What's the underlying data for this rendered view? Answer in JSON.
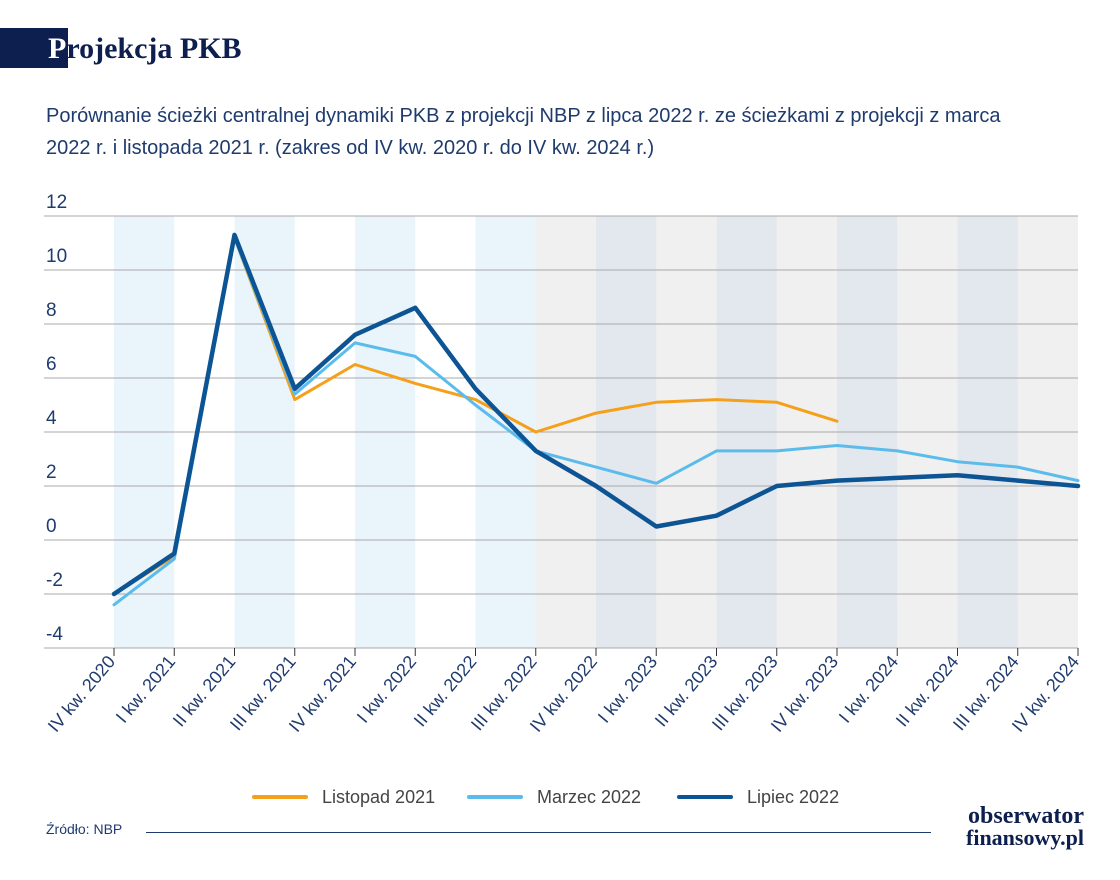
{
  "header": {
    "title_first_letter": "P",
    "title_rest": "rojekcja PKB"
  },
  "subtitle": "Porównanie ścieżki centralnej dynamiki PKB z projekcji NBP z lipca 2022 r. ze ścieżkami z projekcji z marca 2022 r. i listopada 2021 r. (zakres od IV kw. 2020 r. do IV kw. 2024 r.)",
  "chart_data": {
    "type": "line",
    "title": "",
    "xlabel": "",
    "ylabel": "",
    "ylim": [
      -4,
      12
    ],
    "yticks": [
      -4,
      -2,
      0,
      2,
      4,
      6,
      8,
      10,
      12
    ],
    "grid": true,
    "categories": [
      "IV kw. 2020",
      "I kw. 2021",
      "II kw. 2021",
      "III kw. 2021",
      "IV kw. 2021",
      "I kw. 2022",
      "II kw. 2022",
      "III kw. 2022",
      "IV kw. 2022",
      "I kw. 2023",
      "II kw. 2023",
      "III kw. 2023",
      "IV kw. 2023",
      "I kw. 2024",
      "II kw. 2024",
      "III kw. 2024",
      "IV kw. 2024"
    ],
    "series": [
      {
        "name": "Listopad 2021",
        "color": "#f5a01a",
        "values": [
          -2.0,
          -0.6,
          11.2,
          5.2,
          6.5,
          5.8,
          5.2,
          4.0,
          4.7,
          5.1,
          5.2,
          5.1,
          4.4,
          null,
          null,
          null,
          null
        ]
      },
      {
        "name": "Marzec 2022",
        "color": "#5bbcec",
        "values": [
          -2.4,
          -0.7,
          11.2,
          5.4,
          7.3,
          6.8,
          5.0,
          3.3,
          2.7,
          2.1,
          3.3,
          3.3,
          3.5,
          3.3,
          2.9,
          2.7,
          2.2
        ]
      },
      {
        "name": "Lipiec 2022",
        "color": "#0d5494",
        "values": [
          -2.0,
          -0.5,
          11.3,
          5.6,
          7.6,
          8.6,
          5.6,
          3.3,
          2.0,
          0.5,
          0.9,
          2.0,
          2.2,
          2.3,
          2.4,
          2.2,
          2.0
        ]
      }
    ],
    "shading": {
      "historical_bands": [
        "I kw. 2021",
        "III kw. 2021",
        "I kw. 2022",
        "III kw. 2022"
      ],
      "projection_start": "III kw. 2022",
      "projection_bands": [
        "I kw. 2023",
        "III kw. 2023",
        "I kw. 2024",
        "III kw. 2024"
      ],
      "historical_color": "#eaf4fb",
      "projection_color": "#f0f0f0",
      "projection_band_color": "#e3e8ee"
    },
    "legend_position": "bottom"
  },
  "source": "Źródło: NBP",
  "logo": {
    "line1": "obserwator",
    "line2": "finansowy.pl"
  }
}
